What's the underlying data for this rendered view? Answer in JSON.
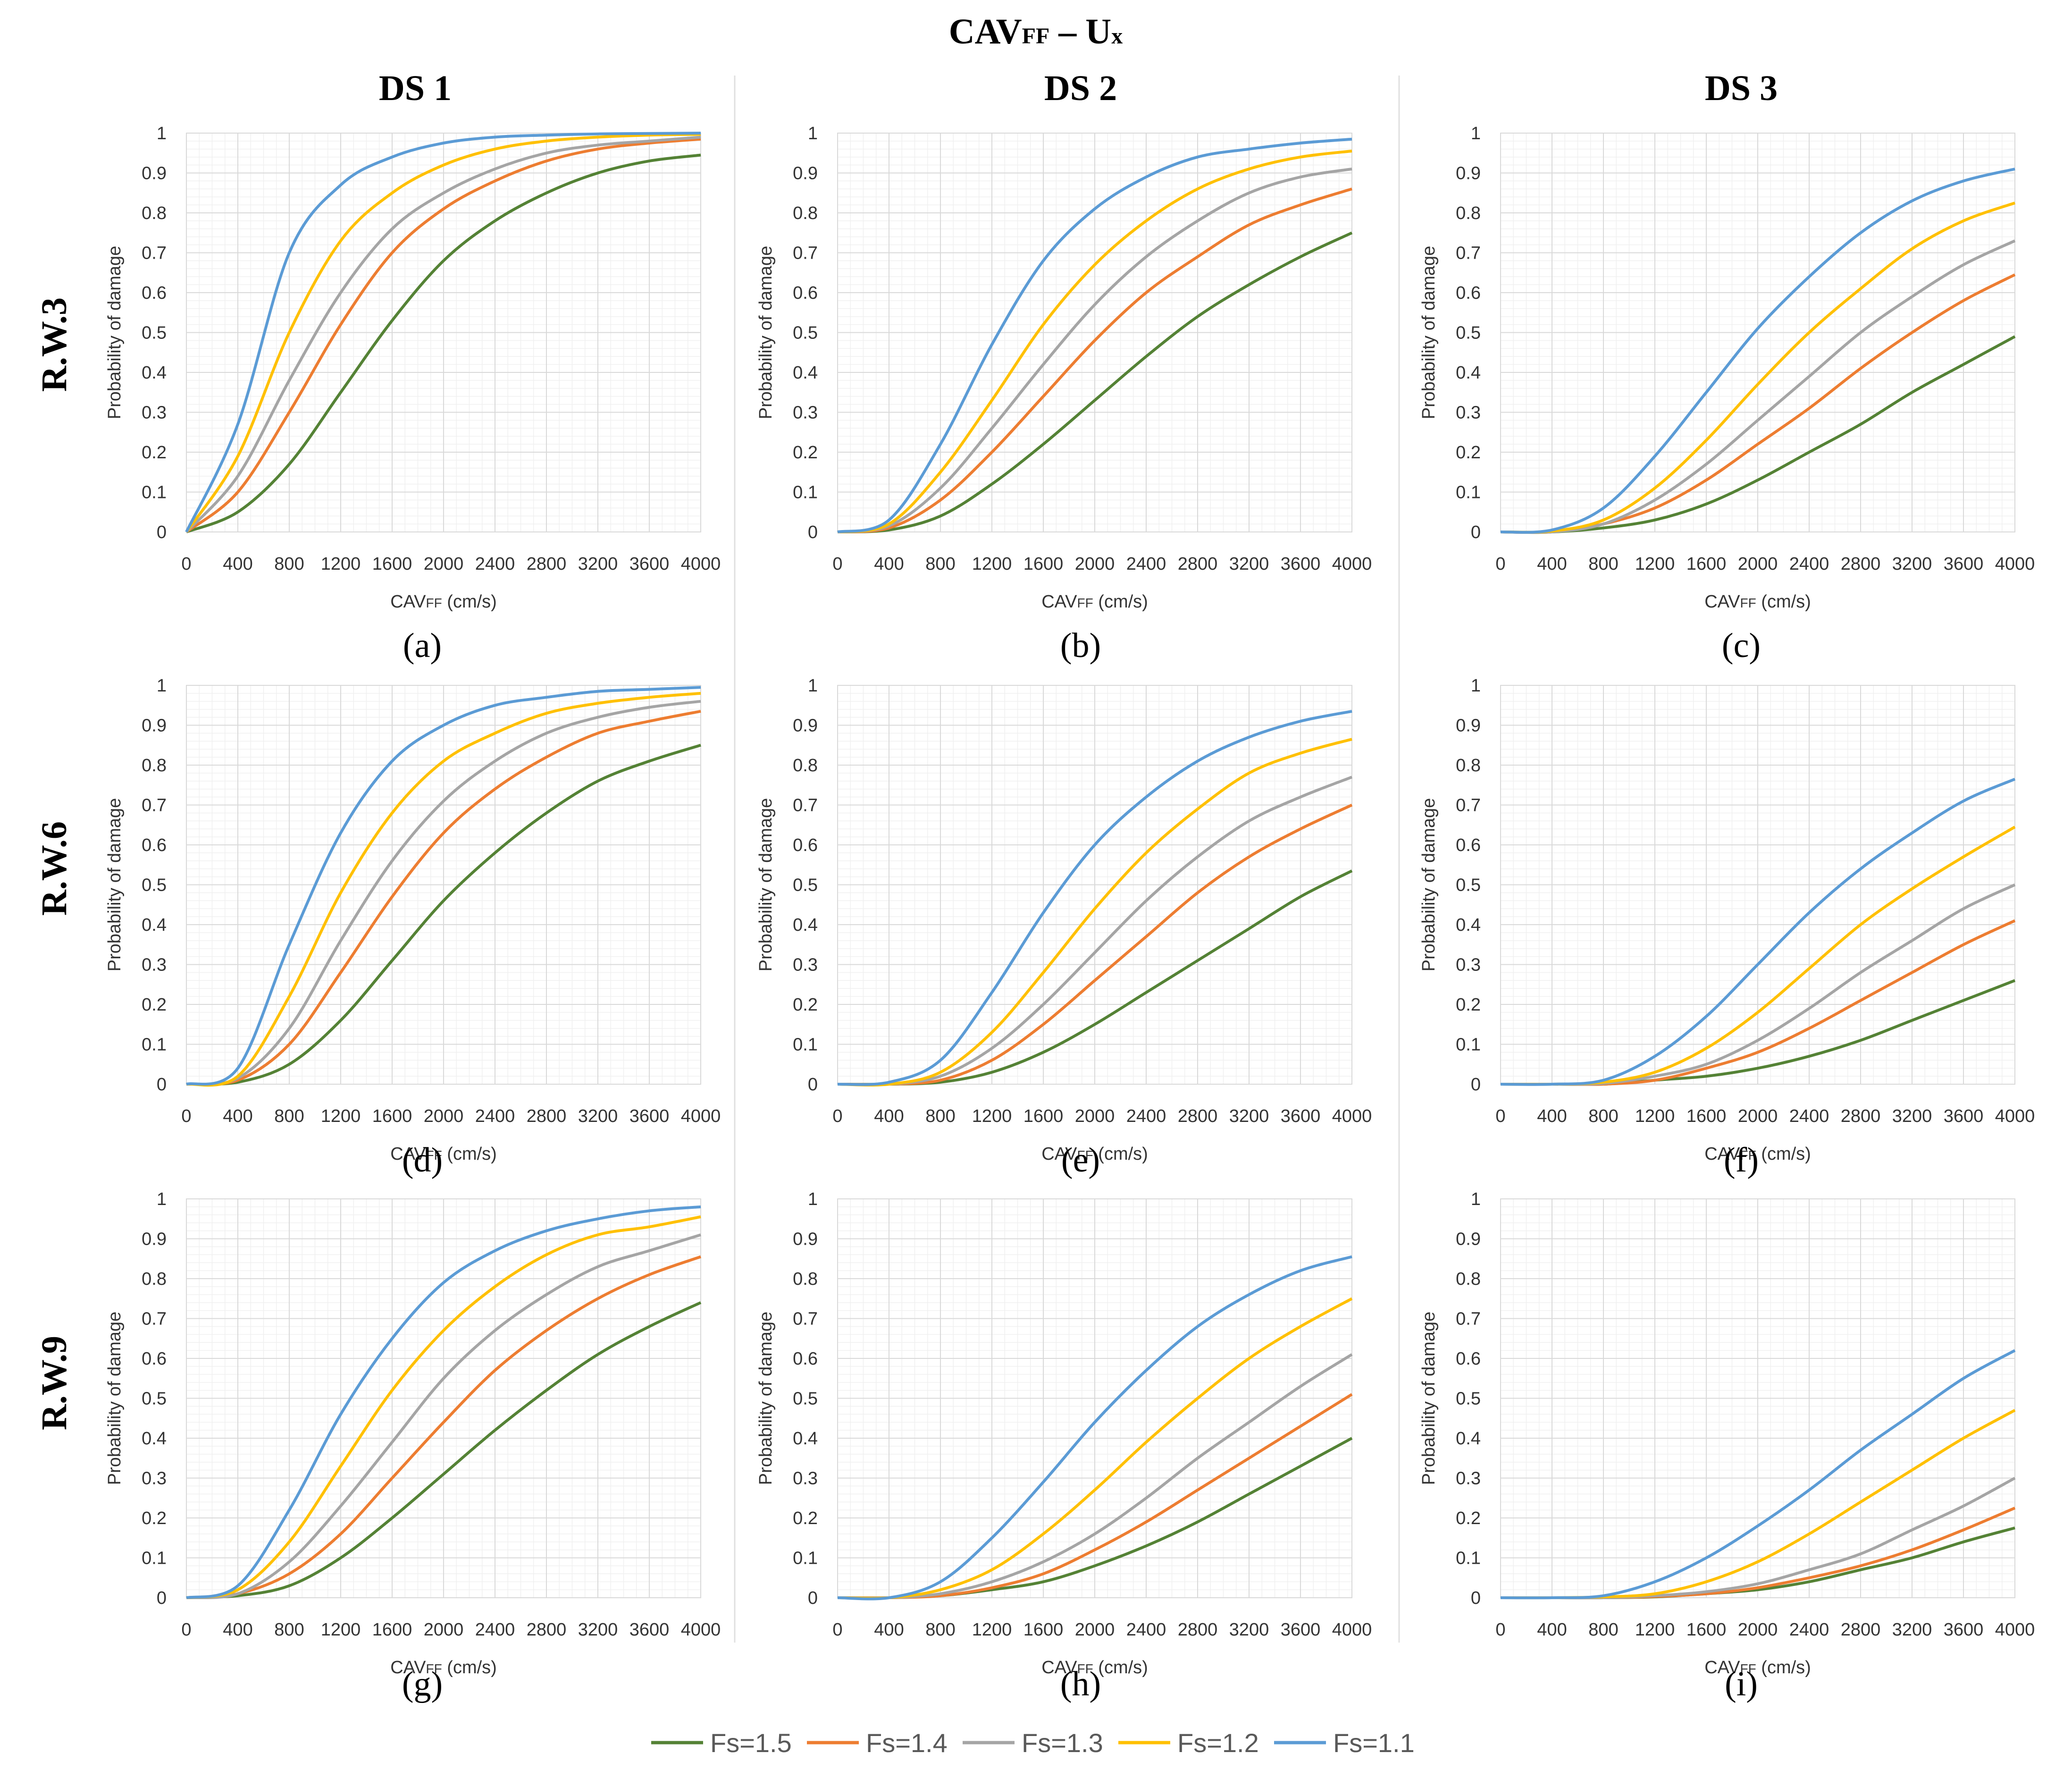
{
  "figure": {
    "title_main": "CAV",
    "title_sub": "FF",
    "title_tail": " – U",
    "title_tail_sub": "x",
    "col_headers": [
      "DS 1",
      "DS 2",
      "DS 3"
    ],
    "row_headers": [
      "R.W.3",
      "R.W.6",
      "R.W.9"
    ],
    "panel_labels": [
      "(a)",
      "(b)",
      "(c)",
      "(d)",
      "(e)",
      "(f)",
      "(g)",
      "(h)",
      "(i)"
    ]
  },
  "axes": {
    "ylabel": "Probability of damage",
    "xlabel_main": "CAV",
    "xlabel_sub": "FF",
    "xlabel_tail": " (cm/s)",
    "xticks": [
      0,
      400,
      800,
      1200,
      1600,
      2000,
      2400,
      2800,
      3200,
      3600,
      4000
    ],
    "yticks": [
      "0",
      "0.1",
      "0.2",
      "0.3",
      "0.4",
      "0.5",
      "0.6",
      "0.7",
      "0.8",
      "0.9",
      "1"
    ],
    "xlim": [
      0,
      4000
    ],
    "ylim": [
      0,
      1
    ],
    "grid": true
  },
  "legend": {
    "placement": "bottom-center",
    "entries": [
      {
        "label": "Fs=1.5",
        "color": "#548235"
      },
      {
        "label": "Fs=1.4",
        "color": "#ED7D31"
      },
      {
        "label": "Fs=1.3",
        "color": "#A5A5A5"
      },
      {
        "label": "Fs=1.2",
        "color": "#FFC000"
      },
      {
        "label": "Fs=1.1",
        "color": "#5B9BD5"
      }
    ]
  },
  "chart_data": [
    {
      "type": "line",
      "panel": "(a)",
      "row": "R.W.3",
      "column": "DS 1",
      "x": [
        0,
        400,
        800,
        1200,
        1600,
        2000,
        2400,
        2800,
        3200,
        3600,
        4000
      ],
      "series": [
        {
          "name": "Fs=1.5",
          "values": [
            0,
            0.05,
            0.17,
            0.35,
            0.53,
            0.68,
            0.78,
            0.85,
            0.9,
            0.93,
            0.945
          ]
        },
        {
          "name": "Fs=1.4",
          "values": [
            0,
            0.1,
            0.3,
            0.52,
            0.7,
            0.81,
            0.88,
            0.93,
            0.96,
            0.975,
            0.985
          ]
        },
        {
          "name": "Fs=1.3",
          "values": [
            0,
            0.14,
            0.38,
            0.6,
            0.76,
            0.85,
            0.91,
            0.95,
            0.97,
            0.98,
            0.99
          ]
        },
        {
          "name": "Fs=1.2",
          "values": [
            0,
            0.19,
            0.5,
            0.73,
            0.85,
            0.92,
            0.96,
            0.98,
            0.99,
            0.995,
            0.997
          ]
        },
        {
          "name": "Fs=1.1",
          "values": [
            0,
            0.27,
            0.7,
            0.87,
            0.94,
            0.975,
            0.99,
            0.995,
            0.998,
            0.999,
            1
          ]
        }
      ]
    },
    {
      "type": "line",
      "panel": "(b)",
      "row": "R.W.3",
      "column": "DS 2",
      "x": [
        0,
        400,
        800,
        1200,
        1600,
        2000,
        2400,
        2800,
        3200,
        3600,
        4000
      ],
      "series": [
        {
          "name": "Fs=1.5",
          "values": [
            0,
            0.005,
            0.04,
            0.12,
            0.22,
            0.33,
            0.44,
            0.54,
            0.62,
            0.69,
            0.75
          ]
        },
        {
          "name": "Fs=1.4",
          "values": [
            0,
            0.01,
            0.08,
            0.2,
            0.34,
            0.48,
            0.6,
            0.69,
            0.77,
            0.82,
            0.86
          ]
        },
        {
          "name": "Fs=1.3",
          "values": [
            0,
            0.015,
            0.11,
            0.26,
            0.42,
            0.57,
            0.69,
            0.78,
            0.85,
            0.89,
            0.91
          ]
        },
        {
          "name": "Fs=1.2",
          "values": [
            0,
            0.02,
            0.15,
            0.33,
            0.52,
            0.67,
            0.78,
            0.86,
            0.91,
            0.94,
            0.955
          ]
        },
        {
          "name": "Fs=1.1",
          "values": [
            0,
            0.03,
            0.22,
            0.47,
            0.68,
            0.81,
            0.89,
            0.94,
            0.96,
            0.975,
            0.985
          ]
        }
      ]
    },
    {
      "type": "line",
      "panel": "(c)",
      "row": "R.W.3",
      "column": "DS 3",
      "x": [
        0,
        400,
        800,
        1200,
        1600,
        2000,
        2400,
        2800,
        3200,
        3600,
        4000
      ],
      "series": [
        {
          "name": "Fs=1.5",
          "values": [
            0,
            0,
            0.01,
            0.03,
            0.07,
            0.13,
            0.2,
            0.27,
            0.35,
            0.42,
            0.49
          ]
        },
        {
          "name": "Fs=1.4",
          "values": [
            0,
            0,
            0.02,
            0.06,
            0.13,
            0.22,
            0.31,
            0.41,
            0.5,
            0.58,
            0.645
          ]
        },
        {
          "name": "Fs=1.3",
          "values": [
            0,
            0,
            0.02,
            0.08,
            0.17,
            0.28,
            0.39,
            0.5,
            0.59,
            0.67,
            0.73
          ]
        },
        {
          "name": "Fs=1.2",
          "values": [
            0,
            0.002,
            0.03,
            0.11,
            0.23,
            0.37,
            0.5,
            0.61,
            0.71,
            0.78,
            0.825
          ]
        },
        {
          "name": "Fs=1.1",
          "values": [
            0,
            0.005,
            0.06,
            0.19,
            0.35,
            0.51,
            0.64,
            0.75,
            0.83,
            0.88,
            0.91
          ]
        }
      ]
    },
    {
      "type": "line",
      "panel": "(d)",
      "row": "R.W.6",
      "column": "DS 1",
      "x": [
        0,
        400,
        800,
        1200,
        1600,
        2000,
        2400,
        2800,
        3200,
        3600,
        4000
      ],
      "series": [
        {
          "name": "Fs=1.5",
          "values": [
            0,
            0.005,
            0.05,
            0.16,
            0.31,
            0.46,
            0.58,
            0.68,
            0.76,
            0.81,
            0.85
          ]
        },
        {
          "name": "Fs=1.4",
          "values": [
            0,
            0.01,
            0.1,
            0.28,
            0.47,
            0.63,
            0.74,
            0.82,
            0.88,
            0.91,
            0.935
          ]
        },
        {
          "name": "Fs=1.3",
          "values": [
            0,
            0.015,
            0.14,
            0.36,
            0.56,
            0.71,
            0.81,
            0.88,
            0.92,
            0.945,
            0.96
          ]
        },
        {
          "name": "Fs=1.2",
          "values": [
            0,
            0.02,
            0.22,
            0.48,
            0.68,
            0.81,
            0.88,
            0.93,
            0.955,
            0.97,
            0.98
          ]
        },
        {
          "name": "Fs=1.1",
          "values": [
            0,
            0.04,
            0.35,
            0.63,
            0.81,
            0.9,
            0.95,
            0.97,
            0.985,
            0.99,
            0.995
          ]
        }
      ]
    },
    {
      "type": "line",
      "panel": "(e)",
      "row": "R.W.6",
      "column": "DS 2",
      "x": [
        0,
        400,
        800,
        1200,
        1600,
        2000,
        2400,
        2800,
        3200,
        3600,
        4000
      ],
      "series": [
        {
          "name": "Fs=1.5",
          "values": [
            0,
            0,
            0.005,
            0.03,
            0.08,
            0.15,
            0.23,
            0.31,
            0.39,
            0.47,
            0.535
          ]
        },
        {
          "name": "Fs=1.4",
          "values": [
            0,
            0,
            0.01,
            0.06,
            0.15,
            0.26,
            0.37,
            0.48,
            0.57,
            0.64,
            0.7
          ]
        },
        {
          "name": "Fs=1.3",
          "values": [
            0,
            0,
            0.02,
            0.09,
            0.2,
            0.33,
            0.46,
            0.57,
            0.66,
            0.72,
            0.77
          ]
        },
        {
          "name": "Fs=1.2",
          "values": [
            0,
            0,
            0.03,
            0.13,
            0.28,
            0.44,
            0.58,
            0.69,
            0.78,
            0.83,
            0.865
          ]
        },
        {
          "name": "Fs=1.1",
          "values": [
            0,
            0.005,
            0.06,
            0.23,
            0.43,
            0.6,
            0.72,
            0.81,
            0.87,
            0.91,
            0.935
          ]
        }
      ]
    },
    {
      "type": "line",
      "panel": "(f)",
      "row": "R.W.6",
      "column": "DS 3",
      "x": [
        0,
        400,
        800,
        1200,
        1600,
        2000,
        2400,
        2800,
        3200,
        3600,
        4000
      ],
      "series": [
        {
          "name": "Fs=1.5",
          "values": [
            0,
            0,
            0,
            0.01,
            0.02,
            0.04,
            0.07,
            0.11,
            0.16,
            0.21,
            0.26
          ]
        },
        {
          "name": "Fs=1.4",
          "values": [
            0,
            0,
            0,
            0.01,
            0.04,
            0.08,
            0.14,
            0.21,
            0.28,
            0.35,
            0.41
          ]
        },
        {
          "name": "Fs=1.3",
          "values": [
            0,
            0,
            0.002,
            0.02,
            0.05,
            0.11,
            0.19,
            0.28,
            0.36,
            0.44,
            0.5
          ]
        },
        {
          "name": "Fs=1.2",
          "values": [
            0,
            0,
            0.005,
            0.03,
            0.09,
            0.18,
            0.29,
            0.4,
            0.49,
            0.57,
            0.645
          ]
        },
        {
          "name": "Fs=1.1",
          "values": [
            0,
            0,
            0.01,
            0.07,
            0.17,
            0.3,
            0.43,
            0.54,
            0.63,
            0.71,
            0.765
          ]
        }
      ]
    },
    {
      "type": "line",
      "panel": "(g)",
      "row": "R.W.9",
      "column": "DS 1",
      "x": [
        0,
        400,
        800,
        1200,
        1600,
        2000,
        2400,
        2800,
        3200,
        3600,
        4000
      ],
      "series": [
        {
          "name": "Fs=1.5",
          "values": [
            0,
            0.005,
            0.03,
            0.1,
            0.2,
            0.31,
            0.42,
            0.52,
            0.61,
            0.68,
            0.74
          ]
        },
        {
          "name": "Fs=1.4",
          "values": [
            0,
            0.01,
            0.06,
            0.16,
            0.3,
            0.44,
            0.57,
            0.67,
            0.75,
            0.81,
            0.855
          ]
        },
        {
          "name": "Fs=1.3",
          "values": [
            0,
            0.01,
            0.09,
            0.23,
            0.39,
            0.55,
            0.67,
            0.76,
            0.83,
            0.87,
            0.91
          ]
        },
        {
          "name": "Fs=1.2",
          "values": [
            0,
            0.02,
            0.14,
            0.33,
            0.52,
            0.67,
            0.78,
            0.86,
            0.91,
            0.93,
            0.955
          ]
        },
        {
          "name": "Fs=1.1",
          "values": [
            0,
            0.03,
            0.22,
            0.46,
            0.65,
            0.79,
            0.87,
            0.92,
            0.95,
            0.97,
            0.98
          ]
        }
      ]
    },
    {
      "type": "line",
      "panel": "(h)",
      "row": "R.W.9",
      "column": "DS 2",
      "x": [
        0,
        400,
        800,
        1200,
        1600,
        2000,
        2400,
        2800,
        3200,
        3600,
        4000
      ],
      "series": [
        {
          "name": "Fs=1.5",
          "values": [
            0,
            0,
            0.005,
            0.02,
            0.04,
            0.08,
            0.13,
            0.19,
            0.26,
            0.33,
            0.4
          ]
        },
        {
          "name": "Fs=1.4",
          "values": [
            0,
            0,
            0.005,
            0.025,
            0.06,
            0.12,
            0.19,
            0.27,
            0.35,
            0.43,
            0.51
          ]
        },
        {
          "name": "Fs=1.3",
          "values": [
            0,
            0,
            0.01,
            0.04,
            0.09,
            0.16,
            0.25,
            0.35,
            0.44,
            0.53,
            0.61
          ]
        },
        {
          "name": "Fs=1.2",
          "values": [
            0,
            0,
            0.02,
            0.07,
            0.16,
            0.27,
            0.39,
            0.5,
            0.6,
            0.68,
            0.75
          ]
        },
        {
          "name": "Fs=1.1",
          "values": [
            0,
            0,
            0.04,
            0.15,
            0.29,
            0.44,
            0.57,
            0.68,
            0.76,
            0.82,
            0.855
          ]
        }
      ]
    },
    {
      "type": "line",
      "panel": "(i)",
      "row": "R.W.9",
      "column": "DS 3",
      "x": [
        0,
        400,
        800,
        1200,
        1600,
        2000,
        2400,
        2800,
        3200,
        3600,
        4000
      ],
      "series": [
        {
          "name": "Fs=1.5",
          "values": [
            0,
            0,
            0,
            0.002,
            0.01,
            0.02,
            0.04,
            0.07,
            0.1,
            0.14,
            0.175
          ]
        },
        {
          "name": "Fs=1.4",
          "values": [
            0,
            0,
            0,
            0.003,
            0.01,
            0.025,
            0.05,
            0.08,
            0.12,
            0.17,
            0.225
          ]
        },
        {
          "name": "Fs=1.3",
          "values": [
            0,
            0,
            0,
            0.005,
            0.015,
            0.035,
            0.07,
            0.11,
            0.17,
            0.23,
            0.3
          ]
        },
        {
          "name": "Fs=1.2",
          "values": [
            0,
            0,
            0.002,
            0.01,
            0.04,
            0.09,
            0.16,
            0.24,
            0.32,
            0.4,
            0.47
          ]
        },
        {
          "name": "Fs=1.1",
          "values": [
            0,
            0,
            0.005,
            0.04,
            0.1,
            0.18,
            0.27,
            0.37,
            0.46,
            0.55,
            0.62
          ]
        }
      ]
    }
  ]
}
